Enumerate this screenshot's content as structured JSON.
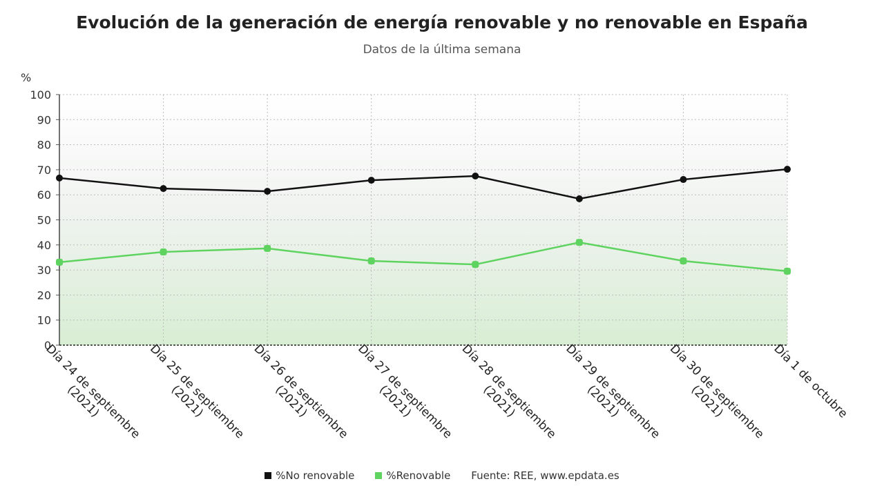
{
  "chart_data": {
    "type": "line",
    "title": "Evolución de la generación de energía renovable y no renovable en España",
    "subtitle": "Datos de la última semana",
    "ylabel": "%",
    "xlabel": "",
    "ylim": [
      0,
      100
    ],
    "yticks": [
      "0",
      "10",
      "20",
      "30",
      "40",
      "50",
      "60",
      "70",
      "80",
      "90",
      "100"
    ],
    "grid": true,
    "categories": [
      [
        "Día 24 de septiembre",
        "(2021)"
      ],
      [
        "Día 25 de septiembre",
        "(2021)"
      ],
      [
        "Día 26 de septiembre",
        "(2021)"
      ],
      [
        "Día 27 de septiembre",
        "(2021)"
      ],
      [
        "Día 28 de septiembre",
        "(2021)"
      ],
      [
        "Día 29 de septiembre",
        "(2021)"
      ],
      [
        "Día 30 de septiembre",
        "(2021)"
      ],
      [
        "Día 1 de octubre"
      ]
    ],
    "series": [
      {
        "name": "%No renovable",
        "color": "#111111",
        "values": [
          66.7,
          62.5,
          61.4,
          65.8,
          67.5,
          58.4,
          66.1,
          70.2
        ]
      },
      {
        "name": "%Renovable",
        "color": "#5fd35f",
        "values": [
          33.1,
          37.2,
          38.6,
          33.6,
          32.2,
          41.0,
          33.6,
          29.5
        ]
      }
    ],
    "legend_position": "bottom",
    "source": "Fuente: REE, www.epdata.es"
  }
}
